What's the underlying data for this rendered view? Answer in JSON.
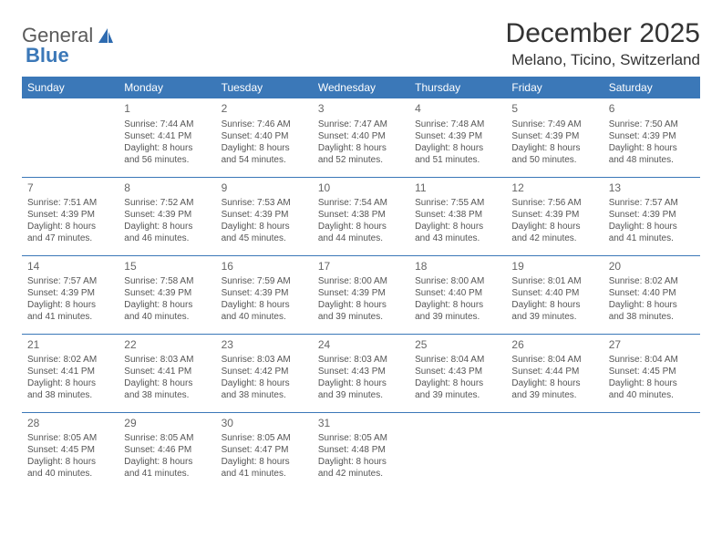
{
  "brand": {
    "part1": "General",
    "part2": "Blue"
  },
  "title": "December 2025",
  "location": "Melano, Ticino, Switzerland",
  "colors": {
    "header_bg": "#3b78b8",
    "header_text": "#ffffff",
    "row_border": "#3b78b8",
    "text": "#555555",
    "title_text": "#333333"
  },
  "weekdays": [
    "Sunday",
    "Monday",
    "Tuesday",
    "Wednesday",
    "Thursday",
    "Friday",
    "Saturday"
  ],
  "weeks": [
    [
      null,
      {
        "n": "1",
        "sr": "Sunrise: 7:44 AM",
        "ss": "Sunset: 4:41 PM",
        "d1": "Daylight: 8 hours",
        "d2": "and 56 minutes."
      },
      {
        "n": "2",
        "sr": "Sunrise: 7:46 AM",
        "ss": "Sunset: 4:40 PM",
        "d1": "Daylight: 8 hours",
        "d2": "and 54 minutes."
      },
      {
        "n": "3",
        "sr": "Sunrise: 7:47 AM",
        "ss": "Sunset: 4:40 PM",
        "d1": "Daylight: 8 hours",
        "d2": "and 52 minutes."
      },
      {
        "n": "4",
        "sr": "Sunrise: 7:48 AM",
        "ss": "Sunset: 4:39 PM",
        "d1": "Daylight: 8 hours",
        "d2": "and 51 minutes."
      },
      {
        "n": "5",
        "sr": "Sunrise: 7:49 AM",
        "ss": "Sunset: 4:39 PM",
        "d1": "Daylight: 8 hours",
        "d2": "and 50 minutes."
      },
      {
        "n": "6",
        "sr": "Sunrise: 7:50 AM",
        "ss": "Sunset: 4:39 PM",
        "d1": "Daylight: 8 hours",
        "d2": "and 48 minutes."
      }
    ],
    [
      {
        "n": "7",
        "sr": "Sunrise: 7:51 AM",
        "ss": "Sunset: 4:39 PM",
        "d1": "Daylight: 8 hours",
        "d2": "and 47 minutes."
      },
      {
        "n": "8",
        "sr": "Sunrise: 7:52 AM",
        "ss": "Sunset: 4:39 PM",
        "d1": "Daylight: 8 hours",
        "d2": "and 46 minutes."
      },
      {
        "n": "9",
        "sr": "Sunrise: 7:53 AM",
        "ss": "Sunset: 4:39 PM",
        "d1": "Daylight: 8 hours",
        "d2": "and 45 minutes."
      },
      {
        "n": "10",
        "sr": "Sunrise: 7:54 AM",
        "ss": "Sunset: 4:38 PM",
        "d1": "Daylight: 8 hours",
        "d2": "and 44 minutes."
      },
      {
        "n": "11",
        "sr": "Sunrise: 7:55 AM",
        "ss": "Sunset: 4:38 PM",
        "d1": "Daylight: 8 hours",
        "d2": "and 43 minutes."
      },
      {
        "n": "12",
        "sr": "Sunrise: 7:56 AM",
        "ss": "Sunset: 4:39 PM",
        "d1": "Daylight: 8 hours",
        "d2": "and 42 minutes."
      },
      {
        "n": "13",
        "sr": "Sunrise: 7:57 AM",
        "ss": "Sunset: 4:39 PM",
        "d1": "Daylight: 8 hours",
        "d2": "and 41 minutes."
      }
    ],
    [
      {
        "n": "14",
        "sr": "Sunrise: 7:57 AM",
        "ss": "Sunset: 4:39 PM",
        "d1": "Daylight: 8 hours",
        "d2": "and 41 minutes."
      },
      {
        "n": "15",
        "sr": "Sunrise: 7:58 AM",
        "ss": "Sunset: 4:39 PM",
        "d1": "Daylight: 8 hours",
        "d2": "and 40 minutes."
      },
      {
        "n": "16",
        "sr": "Sunrise: 7:59 AM",
        "ss": "Sunset: 4:39 PM",
        "d1": "Daylight: 8 hours",
        "d2": "and 40 minutes."
      },
      {
        "n": "17",
        "sr": "Sunrise: 8:00 AM",
        "ss": "Sunset: 4:39 PM",
        "d1": "Daylight: 8 hours",
        "d2": "and 39 minutes."
      },
      {
        "n": "18",
        "sr": "Sunrise: 8:00 AM",
        "ss": "Sunset: 4:40 PM",
        "d1": "Daylight: 8 hours",
        "d2": "and 39 minutes."
      },
      {
        "n": "19",
        "sr": "Sunrise: 8:01 AM",
        "ss": "Sunset: 4:40 PM",
        "d1": "Daylight: 8 hours",
        "d2": "and 39 minutes."
      },
      {
        "n": "20",
        "sr": "Sunrise: 8:02 AM",
        "ss": "Sunset: 4:40 PM",
        "d1": "Daylight: 8 hours",
        "d2": "and 38 minutes."
      }
    ],
    [
      {
        "n": "21",
        "sr": "Sunrise: 8:02 AM",
        "ss": "Sunset: 4:41 PM",
        "d1": "Daylight: 8 hours",
        "d2": "and 38 minutes."
      },
      {
        "n": "22",
        "sr": "Sunrise: 8:03 AM",
        "ss": "Sunset: 4:41 PM",
        "d1": "Daylight: 8 hours",
        "d2": "and 38 minutes."
      },
      {
        "n": "23",
        "sr": "Sunrise: 8:03 AM",
        "ss": "Sunset: 4:42 PM",
        "d1": "Daylight: 8 hours",
        "d2": "and 38 minutes."
      },
      {
        "n": "24",
        "sr": "Sunrise: 8:03 AM",
        "ss": "Sunset: 4:43 PM",
        "d1": "Daylight: 8 hours",
        "d2": "and 39 minutes."
      },
      {
        "n": "25",
        "sr": "Sunrise: 8:04 AM",
        "ss": "Sunset: 4:43 PM",
        "d1": "Daylight: 8 hours",
        "d2": "and 39 minutes."
      },
      {
        "n": "26",
        "sr": "Sunrise: 8:04 AM",
        "ss": "Sunset: 4:44 PM",
        "d1": "Daylight: 8 hours",
        "d2": "and 39 minutes."
      },
      {
        "n": "27",
        "sr": "Sunrise: 8:04 AM",
        "ss": "Sunset: 4:45 PM",
        "d1": "Daylight: 8 hours",
        "d2": "and 40 minutes."
      }
    ],
    [
      {
        "n": "28",
        "sr": "Sunrise: 8:05 AM",
        "ss": "Sunset: 4:45 PM",
        "d1": "Daylight: 8 hours",
        "d2": "and 40 minutes."
      },
      {
        "n": "29",
        "sr": "Sunrise: 8:05 AM",
        "ss": "Sunset: 4:46 PM",
        "d1": "Daylight: 8 hours",
        "d2": "and 41 minutes."
      },
      {
        "n": "30",
        "sr": "Sunrise: 8:05 AM",
        "ss": "Sunset: 4:47 PM",
        "d1": "Daylight: 8 hours",
        "d2": "and 41 minutes."
      },
      {
        "n": "31",
        "sr": "Sunrise: 8:05 AM",
        "ss": "Sunset: 4:48 PM",
        "d1": "Daylight: 8 hours",
        "d2": "and 42 minutes."
      },
      null,
      null,
      null
    ]
  ]
}
